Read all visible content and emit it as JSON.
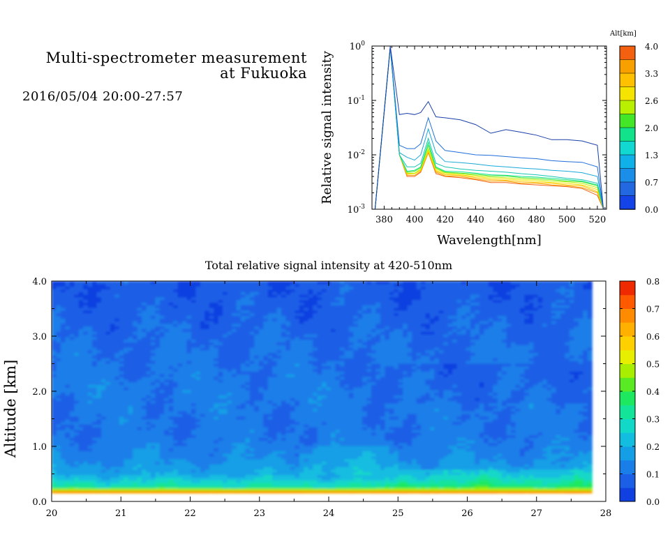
{
  "header": {
    "title_line1": "Multi-spectrometer measurement",
    "title_line2": "at Fukuoka",
    "date_range": "2016/05/04 20:00-27:57"
  },
  "chart_data": [
    {
      "type": "line",
      "xlabel": "Wavelength[nm]",
      "ylabel": "Relative signal intensity",
      "xlim": [
        372,
        526
      ],
      "ylim": [
        0.001,
        1
      ],
      "yscale": "log",
      "xticks": [
        380,
        400,
        420,
        440,
        460,
        480,
        500,
        520
      ],
      "yticks": [
        {
          "value": 0.001,
          "base": "10",
          "exp": "-3"
        },
        {
          "value": 0.01,
          "base": "10",
          "exp": "-2"
        },
        {
          "value": 0.1,
          "base": "10",
          "exp": "-1"
        },
        {
          "value": 1,
          "base": "10",
          "exp": "0"
        }
      ],
      "x": [
        374,
        384,
        390,
        395,
        400,
        404,
        409,
        414,
        420,
        430,
        440,
        450,
        460,
        470,
        480,
        490,
        500,
        510,
        520,
        524
      ],
      "colorbar": {
        "label": "Alt[km]",
        "ticks": [
          "4.0",
          "3.3",
          "2.6",
          "2.0",
          "1.3",
          "0.7",
          "0.0"
        ],
        "colors": [
          "#f26010",
          "#f7a000",
          "#ffc000",
          "#f5e400",
          "#b8f000",
          "#44e628",
          "#12e28a",
          "#12d8d2",
          "#10b0e8",
          "#1a8ee8",
          "#2268e0",
          "#1444e8"
        ]
      },
      "series": [
        {
          "altitude": 0.0,
          "color": "#1a3fa8",
          "values": [
            0.001,
            1.0,
            0.055,
            0.058,
            0.055,
            0.06,
            0.095,
            0.05,
            0.048,
            0.044,
            0.036,
            0.025,
            0.029,
            0.026,
            0.023,
            0.019,
            0.019,
            0.018,
            0.015,
            0.001
          ]
        },
        {
          "altitude": 0.1,
          "color": "#1e6ed8",
          "values": [
            0.001,
            0.95,
            0.015,
            0.013,
            0.013,
            0.016,
            0.048,
            0.018,
            0.012,
            0.011,
            0.01,
            0.0098,
            0.0093,
            0.0088,
            0.0085,
            0.0078,
            0.0075,
            0.0073,
            0.006,
            0.001
          ]
        },
        {
          "altitude": 0.2,
          "color": "#18a8d8",
          "values": [
            0.001,
            0.95,
            0.011,
            0.009,
            0.008,
            0.01,
            0.03,
            0.011,
            0.0075,
            0.0072,
            0.0068,
            0.0063,
            0.006,
            0.0057,
            0.0055,
            0.0052,
            0.005,
            0.0047,
            0.004,
            0.001
          ]
        },
        {
          "altitude": 0.3,
          "color": "#16c4b4",
          "values": [
            0.001,
            0.95,
            0.01,
            0.006,
            0.006,
            0.007,
            0.02,
            0.007,
            0.006,
            0.0055,
            0.0052,
            0.005,
            0.0048,
            0.0045,
            0.0043,
            0.004,
            0.0037,
            0.0035,
            0.003,
            0.001
          ]
        },
        {
          "altitude": 0.7,
          "color": "#12e28a",
          "values": [
            0.001,
            0.95,
            0.01,
            0.005,
            0.0052,
            0.006,
            0.017,
            0.006,
            0.005,
            0.0049,
            0.0046,
            0.0043,
            0.0042,
            0.004,
            0.0039,
            0.0037,
            0.0035,
            0.0033,
            0.0028,
            0.001
          ]
        },
        {
          "altitude": 1.0,
          "color": "#44e628",
          "values": [
            0.001,
            0.95,
            0.01,
            0.0048,
            0.005,
            0.0058,
            0.015,
            0.0058,
            0.0048,
            0.0046,
            0.0044,
            0.0041,
            0.0041,
            0.0038,
            0.0037,
            0.0035,
            0.0033,
            0.0032,
            0.0027,
            0.001
          ]
        },
        {
          "altitude": 2.0,
          "color": "#b8f000",
          "values": [
            0.001,
            0.95,
            0.01,
            0.0046,
            0.0046,
            0.0055,
            0.013,
            0.0055,
            0.0047,
            0.0045,
            0.0042,
            0.0039,
            0.0038,
            0.0036,
            0.0035,
            0.0033,
            0.0032,
            0.003,
            0.0025,
            0.001
          ]
        },
        {
          "altitude": 2.6,
          "color": "#f5e400",
          "values": [
            0.001,
            0.95,
            0.01,
            0.0045,
            0.0045,
            0.0053,
            0.012,
            0.0052,
            0.0045,
            0.0043,
            0.004,
            0.0037,
            0.0036,
            0.0034,
            0.0033,
            0.0031,
            0.003,
            0.0028,
            0.0023,
            0.001
          ]
        },
        {
          "altitude": 3.0,
          "color": "#ffc000",
          "values": [
            0.001,
            0.95,
            0.01,
            0.0044,
            0.0045,
            0.0052,
            0.012,
            0.005,
            0.0043,
            0.0042,
            0.0038,
            0.0035,
            0.0034,
            0.0032,
            0.0031,
            0.003,
            0.0028,
            0.0027,
            0.0021,
            0.001
          ]
        },
        {
          "altitude": 3.5,
          "color": "#f7a000",
          "values": [
            0.001,
            0.95,
            0.01,
            0.0042,
            0.0042,
            0.005,
            0.011,
            0.0048,
            0.0041,
            0.004,
            0.0036,
            0.0033,
            0.0033,
            0.003,
            0.003,
            0.0028,
            0.0027,
            0.0025,
            0.002,
            0.001
          ]
        },
        {
          "altitude": 4.0,
          "color": "#f26010",
          "values": [
            0.001,
            0.95,
            0.01,
            0.004,
            0.004,
            0.0048,
            0.011,
            0.0045,
            0.004,
            0.0038,
            0.0035,
            0.0031,
            0.0031,
            0.0029,
            0.0028,
            0.0027,
            0.0026,
            0.0024,
            0.0018,
            0.001
          ]
        }
      ]
    },
    {
      "type": "heatmap",
      "title": "Total relative signal intensity at 420-510nm",
      "ylabel": "Altitude [km]",
      "xlim": [
        20,
        28
      ],
      "ylim": [
        0,
        4
      ],
      "xticks": [
        "20",
        "21",
        "22",
        "23",
        "24",
        "25",
        "26",
        "27",
        "28"
      ],
      "yticks": [
        "0.0",
        "1.0",
        "2.0",
        "3.0",
        "4.0"
      ],
      "data_xrange": [
        20,
        27.8
      ],
      "data_yrange": [
        0.15,
        4.0
      ],
      "colorbar": {
        "range": [
          0,
          0.8
        ],
        "ticks": [
          "0.8",
          "0.7",
          "0.6",
          "0.5",
          "0.4",
          "0.3",
          "0.2",
          "0.1",
          "0.0"
        ],
        "colors": [
          "#1040e0",
          "#1a5fe6",
          "#1a7ee8",
          "#149ee6",
          "#12bde0",
          "#12d8c8",
          "#14e49a",
          "#1ee860",
          "#5aea24",
          "#a8ee00",
          "#e8ee00",
          "#ffd000",
          "#ffb000",
          "#ff8c00",
          "#ff5a00",
          "#f02a00"
        ]
      },
      "profile": [
        {
          "alt": 0.15,
          "value": 0.6
        },
        {
          "alt": 0.2,
          "value": 0.5
        },
        {
          "alt": 0.25,
          "value": 0.33
        },
        {
          "alt": 0.35,
          "value": 0.27
        },
        {
          "alt": 0.5,
          "value": 0.19
        },
        {
          "alt": 0.8,
          "value": 0.14
        },
        {
          "alt": 1.2,
          "value": 0.11
        },
        {
          "alt": 1.5,
          "value": 0.11
        },
        {
          "alt": 2.0,
          "value": 0.12
        },
        {
          "alt": 2.5,
          "value": 0.105
        },
        {
          "alt": 3.0,
          "value": 0.095
        },
        {
          "alt": 3.5,
          "value": 0.075
        },
        {
          "alt": 4.0,
          "value": 0.06
        }
      ]
    }
  ]
}
